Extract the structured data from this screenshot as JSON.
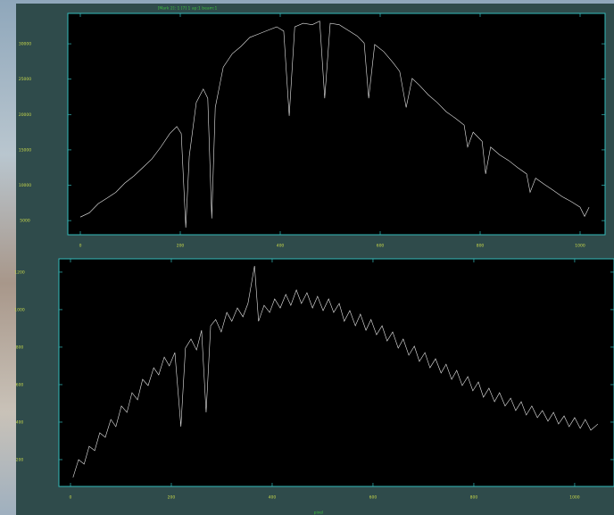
{
  "chart_data": [
    {
      "type": "line",
      "title": "[Mark 2]: 1 [7] 1 ap:1 beam:1",
      "xlim": [
        -25,
        1050
      ],
      "ylim": [
        3000,
        34300
      ],
      "xticks": [
        0,
        200,
        400,
        600,
        800,
        1000
      ],
      "yticks": [
        5000,
        10000,
        15000,
        20000,
        25000,
        30000
      ],
      "axis_color": "#33bbbb",
      "series": [
        {
          "color": "#e8e8e8",
          "x": [
            0,
            18,
            36,
            54,
            71,
            89,
            107,
            125,
            143,
            161,
            179,
            193,
            202,
            211,
            218,
            232,
            246,
            255,
            263,
            270,
            286,
            304,
            321,
            339,
            357,
            375,
            393,
            407,
            418,
            429,
            446,
            464,
            479,
            489,
            500,
            518,
            536,
            554,
            568,
            577,
            589,
            607,
            625,
            639,
            652,
            664,
            679,
            696,
            714,
            732,
            750,
            768,
            775,
            786,
            804,
            811,
            821,
            839,
            857,
            875,
            893,
            900,
            911,
            929,
            946,
            964,
            982,
            1000,
            1009,
            1018
          ],
          "values": [
            5500,
            6100,
            7400,
            8200,
            9000,
            10300,
            11300,
            12500,
            13700,
            15400,
            17300,
            18300,
            17300,
            4000,
            14100,
            21700,
            23600,
            22300,
            5300,
            21000,
            26700,
            28600,
            29600,
            30900,
            31400,
            31900,
            32400,
            31800,
            19800,
            32400,
            32900,
            32700,
            33200,
            22300,
            32900,
            32700,
            31900,
            31100,
            30100,
            22300,
            29900,
            28900,
            27400,
            26100,
            21000,
            25100,
            24100,
            22800,
            21700,
            20400,
            19500,
            18500,
            15400,
            17500,
            16200,
            11600,
            15400,
            14300,
            13500,
            12500,
            11600,
            9000,
            11000,
            10100,
            9300,
            8400,
            7700,
            6900,
            5600,
            6900
          ]
        }
      ]
    },
    {
      "type": "line",
      "xlabel": "pixel",
      "xlim": [
        -23,
        1078
      ],
      "ylim": [
        57,
        1271
      ],
      "xticks": [
        0,
        200,
        400,
        600,
        800,
        1000
      ],
      "yticks": [
        200,
        400,
        600,
        800,
        1000,
        1200
      ],
      "axis_color": "#33bbbb",
      "series": [
        {
          "color": "#e8e8e8",
          "x": [
            5,
            16,
            27,
            37,
            48,
            58,
            69,
            80,
            90,
            101,
            112,
            122,
            133,
            143,
            154,
            165,
            175,
            186,
            196,
            207,
            219,
            228,
            239,
            250,
            260,
            269,
            278,
            288,
            299,
            310,
            320,
            331,
            342,
            352,
            365,
            373,
            384,
            395,
            405,
            416,
            427,
            437,
            448,
            458,
            469,
            480,
            490,
            501,
            512,
            522,
            533,
            543,
            554,
            565,
            575,
            586,
            596,
            607,
            618,
            628,
            639,
            650,
            660,
            671,
            682,
            692,
            703,
            713,
            724,
            735,
            745,
            756,
            766,
            777,
            788,
            798,
            809,
            819,
            830,
            841,
            851,
            862,
            873,
            883,
            894,
            904,
            915,
            926,
            936,
            947,
            958,
            968,
            979,
            989,
            1000,
            1011,
            1021,
            1032,
            1046
          ],
          "values": [
            105,
            200,
            176,
            271,
            248,
            343,
            319,
            414,
            376,
            486,
            452,
            557,
            519,
            628,
            595,
            690,
            652,
            747,
            700,
            771,
            376,
            795,
            843,
            785,
            890,
            452,
            914,
            947,
            881,
            985,
            938,
            1009,
            962,
            1033,
            1233,
            938,
            1023,
            985,
            1057,
            1009,
            1081,
            1023,
            1105,
            1033,
            1090,
            1009,
            1071,
            995,
            1057,
            985,
            1033,
            938,
            995,
            914,
            976,
            890,
            947,
            866,
            914,
            833,
            881,
            795,
            843,
            757,
            805,
            724,
            771,
            690,
            738,
            662,
            709,
            628,
            676,
            595,
            643,
            567,
            614,
            533,
            581,
            509,
            557,
            486,
            528,
            462,
            509,
            438,
            486,
            424,
            462,
            405,
            452,
            390,
            433,
            376,
            424,
            367,
            414,
            357,
            390
          ]
        }
      ]
    }
  ]
}
